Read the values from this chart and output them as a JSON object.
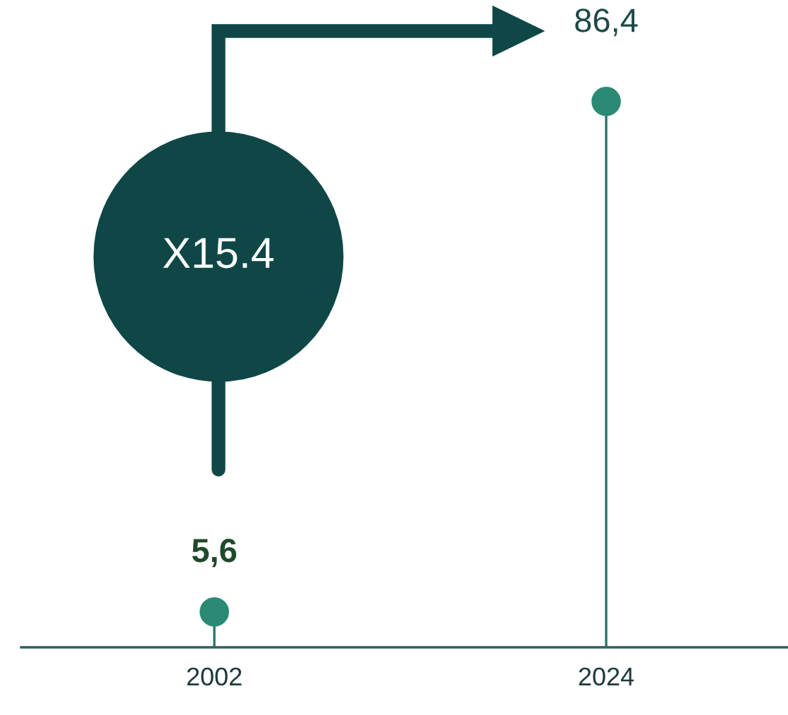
{
  "chart_data": {
    "type": "lollipop",
    "categories": [
      "2002",
      "2024"
    ],
    "series": [
      {
        "color": "#2a8a74",
        "values": [
          5.6,
          86.4
        ],
        "value_labels": [
          "5,6",
          "86,4"
        ]
      }
    ],
    "annotations": [
      "X15.4"
    ],
    "grid": false,
    "legend": false
  }
}
